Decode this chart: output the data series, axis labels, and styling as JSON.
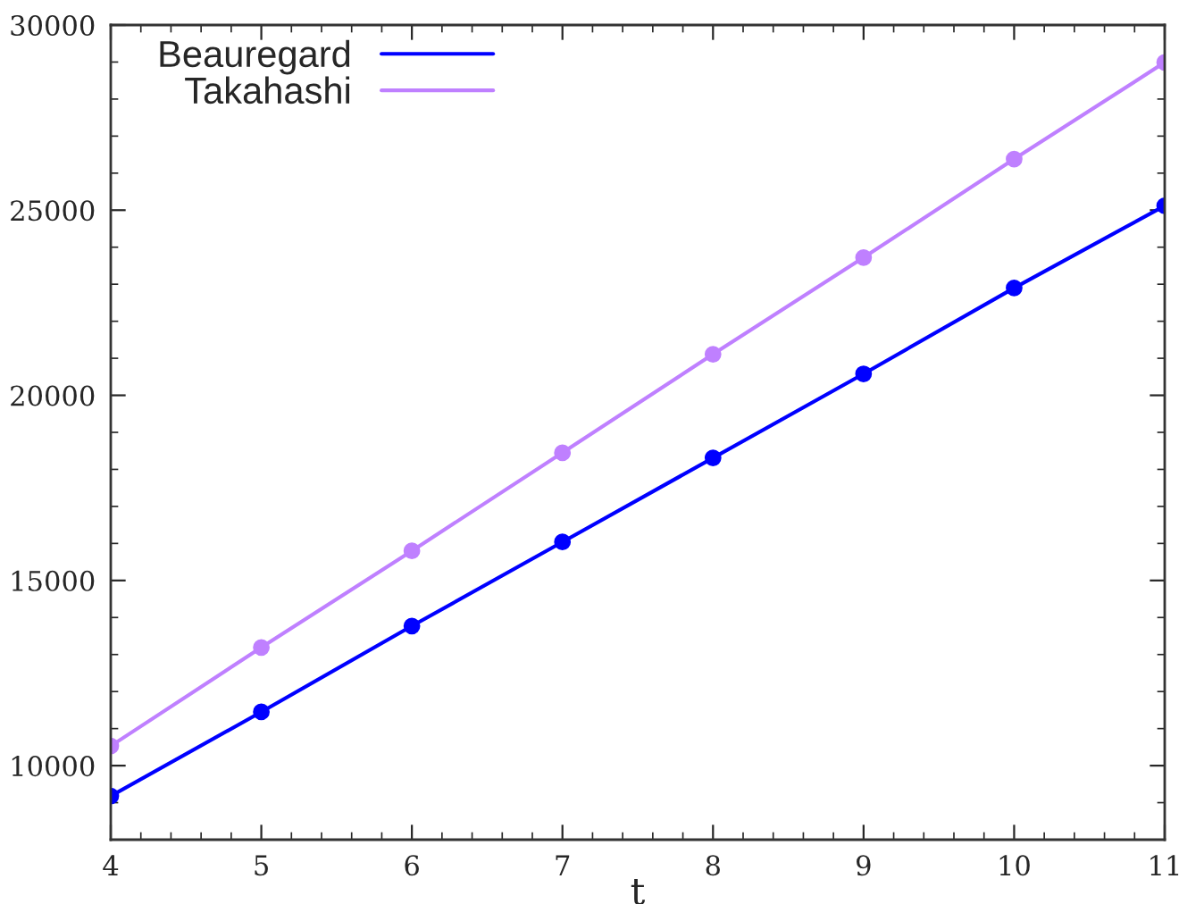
{
  "chart_data": {
    "type": "line",
    "xlabel": "t",
    "x": [
      4,
      5,
      6,
      7,
      8,
      9,
      10,
      11
    ],
    "series": [
      {
        "name": "Beauregard",
        "color": "#0000ff",
        "values": [
          9180,
          11450,
          13770,
          16040,
          18310,
          20580,
          22900,
          25120
        ]
      },
      {
        "name": "Takahashi",
        "color": "#bf80ff",
        "values": [
          10530,
          13190,
          15800,
          18450,
          21110,
          23720,
          26380,
          28990
        ]
      }
    ],
    "xlim": [
      4,
      11
    ],
    "xticks": [
      4,
      5,
      6,
      7,
      8,
      9,
      10,
      11
    ],
    "ylim": [
      8000,
      30000
    ],
    "yticks": [
      10000,
      15000,
      20000,
      25000,
      30000
    ],
    "grid": false,
    "legend": "top left",
    "marker": "circle",
    "line_style": "solid"
  }
}
